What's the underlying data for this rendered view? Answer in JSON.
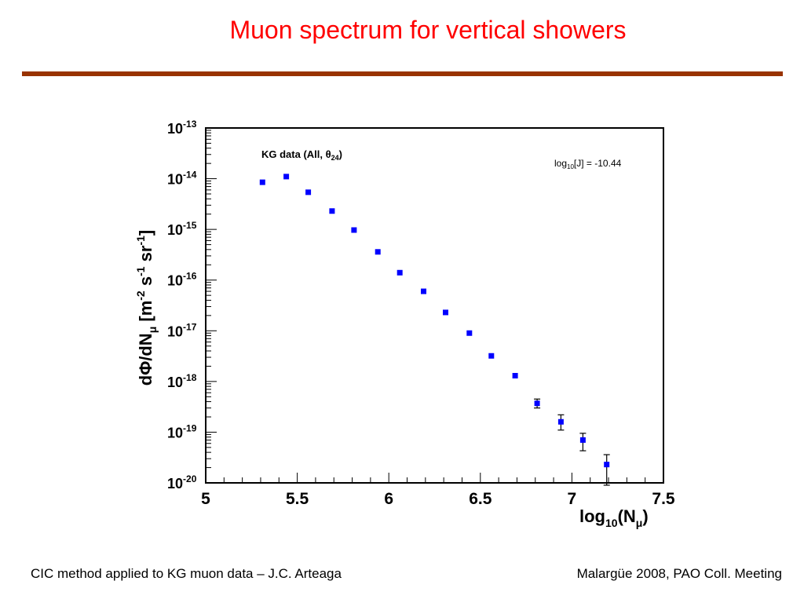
{
  "slide": {
    "title": "Muon spectrum for vertical showers",
    "footer_left": "CIC method applied to KG muon data – J.C. Arteaga",
    "footer_right": "Malargüe 2008, PAO Coll. Meeting",
    "title_color": "#ff0000",
    "rule_color": "#993300"
  },
  "chart_data": {
    "type": "scatter",
    "title": "",
    "annotation_left": "KG data (All, θ24)",
    "annotation_right": "log10[J] = -10.44",
    "xlabel": "log10(Nμ)",
    "ylabel": "dΦ/dNμ [m-2 s-1 sr-1]",
    "y_scale": "log",
    "xlim": [
      5,
      7.5
    ],
    "ylim": [
      1e-20,
      1e-13
    ],
    "x_ticks": [
      "5",
      "5.5",
      "6",
      "6.5",
      "7",
      "7.5"
    ],
    "y_ticks": [
      "10-13",
      "10-14",
      "10-15",
      "10-16",
      "10-17",
      "10-18",
      "10-19",
      "10-20"
    ],
    "grid": false,
    "marker_color": "#0000ff",
    "series": [
      {
        "x": [
          5.31,
          5.44,
          5.56,
          5.69,
          5.81,
          5.94,
          6.06,
          6.19,
          6.31,
          6.44,
          6.56,
          6.69,
          6.81,
          6.94,
          7.06,
          7.19
        ],
        "y": [
          8.5e-15,
          1.1e-14,
          5.4e-15,
          2.3e-15,
          9.7e-16,
          3.6e-16,
          1.4e-16,
          6e-17,
          2.3e-17,
          9e-18,
          3.2e-18,
          1.3e-18,
          3.7e-19,
          1.6e-19,
          7e-20,
          2.3e-20
        ],
        "y_err_low": [
          null,
          null,
          null,
          null,
          null,
          null,
          null,
          null,
          null,
          null,
          null,
          null,
          3e-19,
          1.1e-19,
          4.3e-20,
          9e-21
        ],
        "y_err_high": [
          null,
          null,
          null,
          null,
          null,
          null,
          null,
          null,
          null,
          null,
          null,
          null,
          4.5e-19,
          2.2e-19,
          9.5e-20,
          3.6e-20
        ]
      }
    ]
  }
}
